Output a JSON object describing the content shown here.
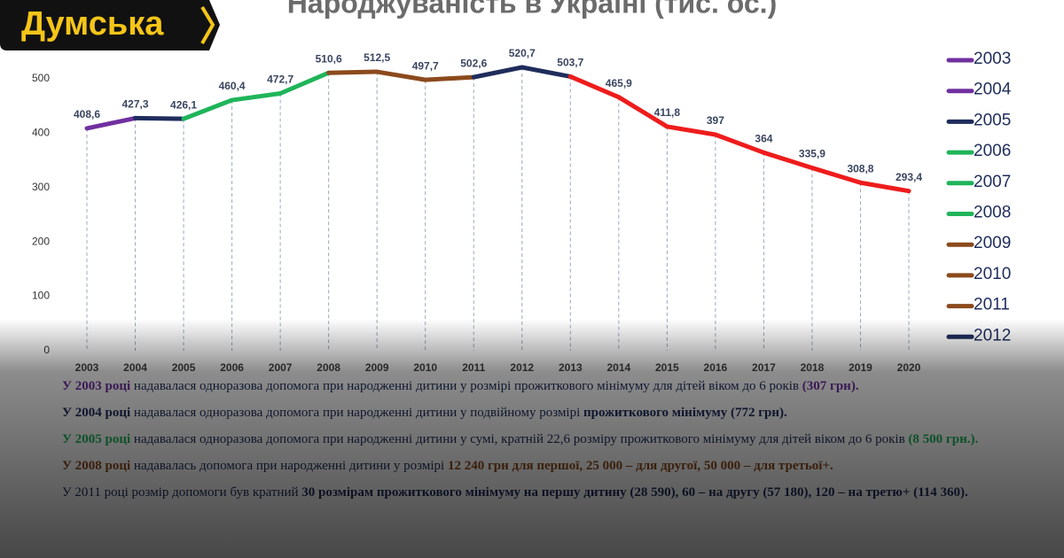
{
  "logo": "Думська",
  "chart_data": {
    "type": "line",
    "title": "Народжуваність в Україні (тис. ос.)",
    "categories": [
      "2003",
      "2004",
      "2005",
      "2006",
      "2007",
      "2008",
      "2009",
      "2010",
      "2011",
      "2012",
      "2013",
      "2014",
      "2015",
      "2016",
      "2017",
      "2018",
      "2019",
      "2020"
    ],
    "values": [
      408.6,
      427.3,
      426.1,
      460.4,
      472.7,
      510.6,
      512.5,
      497.7,
      502.6,
      520.7,
      503.7,
      465.9,
      411.8,
      397,
      364,
      335.9,
      308.8,
      293.4
    ],
    "value_labels": [
      "408,6",
      "427,3",
      "426,1",
      "460,4",
      "472,7",
      "510,6",
      "512,5",
      "497,7",
      "502,6",
      "520,7",
      "503,7",
      "465,9",
      "411,8",
      "397",
      "364",
      "335,9",
      "308,8",
      "293,4"
    ],
    "segment_colors": [
      "#7030a0",
      "#1f2d5c",
      "#1fb45a",
      "#1fb45a",
      "#1fb45a",
      "#8b4a1c",
      "#8b4a1c",
      "#8b4a1c",
      "#1f2d5c",
      "#1f2d5c",
      "#ee1c1c",
      "#ee1c1c",
      "#ee1c1c",
      "#ee1c1c",
      "#ee1c1c",
      "#ee1c1c",
      "#ee1c1c"
    ],
    "ylim": [
      0,
      550
    ],
    "yticks": [
      0,
      100,
      200,
      300,
      400,
      500
    ],
    "grid": false,
    "legend": [
      {
        "label": "2003",
        "color": "#7030a0"
      },
      {
        "label": "2004",
        "color": "#7030a0"
      },
      {
        "label": "2005",
        "color": "#1f2d5c"
      },
      {
        "label": "2006",
        "color": "#1fb45a"
      },
      {
        "label": "2007",
        "color": "#1fb45a"
      },
      {
        "label": "2008",
        "color": "#1fb45a"
      },
      {
        "label": "2009",
        "color": "#8b4a1c"
      },
      {
        "label": "2010",
        "color": "#8b4a1c"
      },
      {
        "label": "2011",
        "color": "#8b4a1c"
      },
      {
        "label": "2012",
        "color": "#1f2d5c"
      }
    ]
  },
  "notes": [
    {
      "indent": false,
      "parts": [
        {
          "text": "У 2003 році",
          "color": "#7030a0",
          "bold": true
        },
        {
          "text": " надавалася одноразова допомога при народженні дитини у розмірі прожиткового мінімуму для дітей віком до 6 років "
        },
        {
          "text": "(307 грн).",
          "color": "#7030a0",
          "bold": true
        }
      ]
    },
    {
      "indent": false,
      "parts": [
        {
          "text": "У 2004 році",
          "color": "#1f2d5c",
          "bold": true
        },
        {
          "text": " надавалася одноразова допомога при народженні дитини у  подвійному розмірі "
        },
        {
          "text": "прожиткового мінімуму (772 грн).",
          "color": "#1f2d5c",
          "bold": true
        }
      ]
    },
    {
      "indent": true,
      "parts": [
        {
          "text": "У 2005 році",
          "color": "#1fb45a",
          "bold": true
        },
        {
          "text": " надавалася одноразова допомога при народженні дитини у сумі, кратній 22,6 розміру прожиткового мінімуму для дітей віком до 6 років "
        },
        {
          "text": "(8 500 грн.).",
          "color": "#1fb45a",
          "bold": true
        }
      ]
    },
    {
      "indent": true,
      "parts": [
        {
          "text": "У 2008 році",
          "color": "#8b4a1c",
          "bold": true
        },
        {
          "text": " надавалась допомога при народженні дитини у розмірі "
        },
        {
          "text": "12 240 грн для першої, 25 000 – для другої, 50 000 – для третьої+.",
          "color": "#8b4a1c",
          "bold": true
        }
      ]
    },
    {
      "indent": true,
      "parts": [
        {
          "text": "У 2011 році розмір допомоги був кратний "
        },
        {
          "text": "30 розмірам прожиткового мінімуму на першу дитину (28 590), 60 – на другу (57 180), 120 – на третю+ (114 360).",
          "bold": true
        }
      ]
    }
  ]
}
